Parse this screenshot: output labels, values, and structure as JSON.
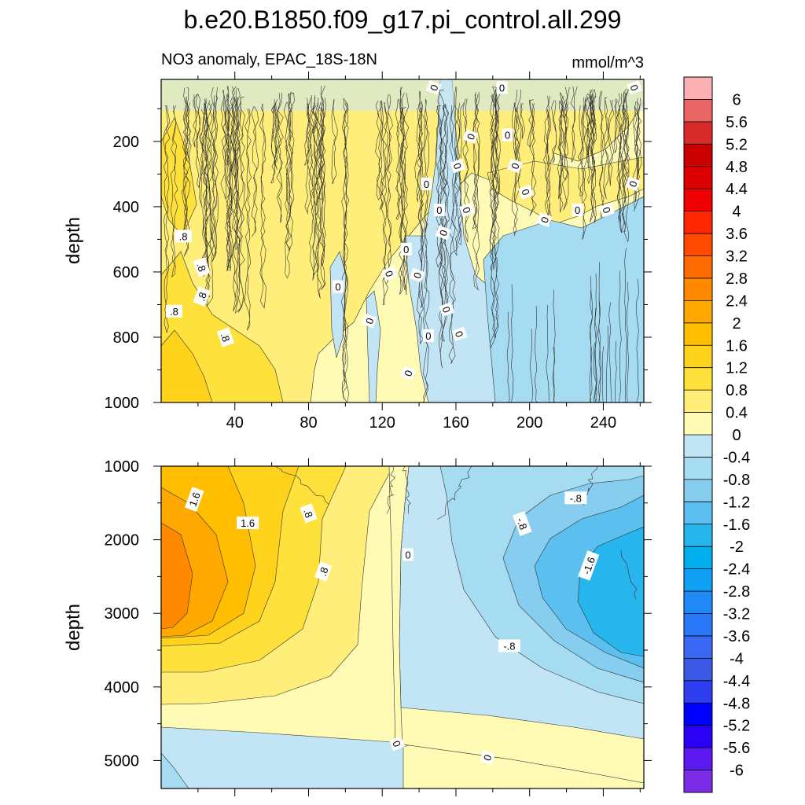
{
  "figure_title": "b.e20.B1850.f09_g17.pi_control.all.299",
  "colorbar": {
    "levels": [
      "6",
      "5.6",
      "5.2",
      "4.8",
      "4.4",
      "4",
      "3.6",
      "3.2",
      "2.8",
      "2.4",
      "2",
      "1.6",
      "1.2",
      "0.8",
      "0.4",
      "0",
      "-0.4",
      "-0.8",
      "-1.2",
      "-1.6",
      "-2",
      "-2.4",
      "-2.8",
      "-3.2",
      "-3.6",
      "-4",
      "-4.4",
      "-4.8",
      "-5.2",
      "-5.6",
      "-6"
    ],
    "colors": [
      "#fdb0b3",
      "#ea6667",
      "#d82b2b",
      "#cb0000",
      "#dd0000",
      "#f00000",
      "#ff2600",
      "#ff4a00",
      "#ff6c00",
      "#ff8a00",
      "#ffa800",
      "#ffbf00",
      "#ffd21c",
      "#ffe13c",
      "#ffef7a",
      "#fffbb5",
      "#c2e5f5",
      "#a6dcf2",
      "#86cdef",
      "#5bc0ef",
      "#26b5ed",
      "#00aeef",
      "#0ea0f5",
      "#1f8af7",
      "#2a78f7",
      "#3b68f2",
      "#3c59e6",
      "#2d3ef0",
      "#0000ff",
      "#2a00f7",
      "#5c19ef",
      "#7b2be6"
    ]
  },
  "chart_data": [
    {
      "type": "contour",
      "title": "NO3 anomaly, EPAC_18S-18N",
      "units": "mmol/m^3",
      "xlabel": "",
      "ylabel": "depth",
      "xlim": [
        0,
        262
      ],
      "ylim": [
        1000,
        10
      ],
      "y_inverted": true,
      "x_ticks": [
        40,
        80,
        120,
        160,
        200,
        240
      ],
      "x_tick_labels": [
        "40",
        "80",
        "120",
        "160",
        "200",
        "240"
      ],
      "y_ticks": [
        200,
        400,
        600,
        800,
        1000
      ],
      "y_tick_labels": [
        "200",
        "400",
        "600",
        "800",
        "1000"
      ],
      "contour_labels": [
        {
          "text": "0",
          "x": 148,
          "y": 35
        },
        {
          "text": "0",
          "x": 185,
          "y": 35
        },
        {
          "text": "0",
          "x": 257,
          "y": 35
        },
        {
          "text": "0",
          "x": 168,
          "y": 185
        },
        {
          "text": "0",
          "x": 188,
          "y": 180
        },
        {
          "text": "0",
          "x": 161,
          "y": 275
        },
        {
          "text": "0",
          "x": 192,
          "y": 275
        },
        {
          "text": "0",
          "x": 144,
          "y": 330
        },
        {
          "text": "0",
          "x": 198,
          "y": 355
        },
        {
          "text": "0",
          "x": 256,
          "y": 330
        },
        {
          "text": "0",
          "x": 151,
          "y": 410
        },
        {
          "text": "0",
          "x": 166,
          "y": 410
        },
        {
          "text": "0",
          "x": 208,
          "y": 440
        },
        {
          "text": "0",
          "x": 226,
          "y": 410
        },
        {
          "text": "0",
          "x": 242,
          "y": 410
        },
        {
          "text": "0",
          "x": 153,
          "y": 480
        },
        {
          "text": "0",
          "x": 133,
          "y": 530
        },
        {
          "text": "0",
          "x": 124,
          "y": 605
        },
        {
          "text": "0",
          "x": 139,
          "y": 610
        },
        {
          "text": "0",
          "x": 96,
          "y": 645
        },
        {
          "text": "0",
          "x": 155,
          "y": 715
        },
        {
          "text": "0",
          "x": 113,
          "y": 750
        },
        {
          "text": "0",
          "x": 145,
          "y": 795
        },
        {
          "text": "0",
          "x": 162,
          "y": 790
        },
        {
          "text": "0",
          "x": 134,
          "y": 910
        },
        {
          "text": ".8",
          "x": 12,
          "y": 490
        },
        {
          "text": ".8",
          "x": 22,
          "y": 585
        },
        {
          "text": ".8",
          "x": 22,
          "y": 675
        },
        {
          "text": ".8",
          "x": 7,
          "y": 720
        },
        {
          "text": ".8",
          "x": 35,
          "y": 800
        }
      ]
    },
    {
      "type": "contour",
      "title": "",
      "xlabel": "",
      "ylabel": "depth",
      "xlim": [
        0,
        262
      ],
      "ylim": [
        5380,
        1000
      ],
      "y_inverted": true,
      "y_ticks": [
        1000,
        2000,
        3000,
        4000,
        5000
      ],
      "y_tick_labels": [
        "1000",
        "2000",
        "3000",
        "4000",
        "5000"
      ],
      "max_anomaly": 2.8,
      "min_anomaly": -2.0,
      "contour_labels": [
        {
          "text": "1.6",
          "x": 18,
          "y": 1450
        },
        {
          "text": "1.6",
          "x": 47,
          "y": 1770
        },
        {
          "text": ".8",
          "x": 80,
          "y": 1640
        },
        {
          "text": ".8",
          "x": 88,
          "y": 2430
        },
        {
          "text": "0",
          "x": 134,
          "y": 2200
        },
        {
          "text": "0",
          "x": 128,
          "y": 4770
        },
        {
          "text": "0",
          "x": 177,
          "y": 4960
        },
        {
          "text": "-.8",
          "x": 225,
          "y": 1430
        },
        {
          "text": "-.8",
          "x": 196,
          "y": 1780
        },
        {
          "text": "-1.6",
          "x": 232,
          "y": 2350
        },
        {
          "text": "-.8",
          "x": 189,
          "y": 3440
        }
      ]
    }
  ]
}
